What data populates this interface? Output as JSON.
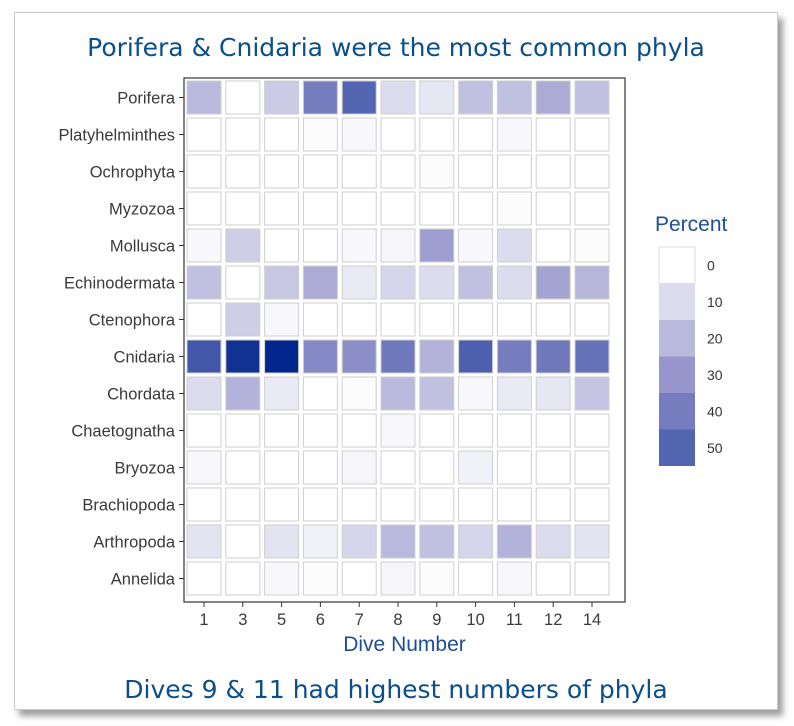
{
  "headline_top": "Porifera & Cnidaria were the most common phyla",
  "headline_bottom": "Dives 9 & 11 had highest numbers of phyla",
  "colors": {
    "headline": "#0b4f8a",
    "axis_title": "#1f4e96",
    "low": "#ffffff",
    "high": "#00258c",
    "cell_border": "#cfcfcf"
  },
  "chart_data": {
    "type": "heatmap",
    "title": "",
    "xlabel": "Dive Number",
    "ylabel": "",
    "x": [
      "1",
      "3",
      "5",
      "6",
      "7",
      "8",
      "9",
      "10",
      "11",
      "12",
      "14"
    ],
    "y": [
      "Porifera",
      "Platyhelminthes",
      "Ochrophyta",
      "Myzozoa",
      "Mollusca",
      "Echinodermata",
      "Ctenophora",
      "Cnidaria",
      "Chordata",
      "Chaetognatha",
      "Bryozoa",
      "Brachiopoda",
      "Arthropoda",
      "Annelida"
    ],
    "values": [
      [
        20,
        0,
        15,
        40,
        50,
        10,
        7,
        18,
        18,
        24,
        18
      ],
      [
        0,
        0,
        0,
        1,
        2,
        0,
        0,
        0,
        2,
        0,
        0
      ],
      [
        0,
        0,
        0,
        0,
        0,
        0,
        1,
        0,
        0,
        0,
        0
      ],
      [
        0,
        0,
        0,
        0,
        0,
        0,
        0,
        0,
        1,
        0,
        0
      ],
      [
        2,
        14,
        0,
        0,
        2,
        3,
        28,
        2,
        10,
        0,
        1
      ],
      [
        18,
        0,
        16,
        24,
        6,
        12,
        10,
        18,
        10,
        26,
        21
      ],
      [
        0,
        14,
        2,
        0,
        0,
        0,
        0,
        0,
        0,
        0,
        0
      ],
      [
        55,
        70,
        75,
        35,
        33,
        42,
        22,
        52,
        40,
        42,
        44
      ],
      [
        10,
        22,
        6,
        0,
        1,
        20,
        18,
        2,
        6,
        7,
        17
      ],
      [
        0,
        0,
        0,
        0,
        0,
        2,
        0,
        0,
        0,
        0,
        0
      ],
      [
        2,
        0,
        0,
        0,
        3,
        0,
        0,
        4,
        0,
        0,
        0
      ],
      [
        0,
        0,
        0,
        0,
        0,
        0,
        0,
        0,
        0,
        0,
        0
      ],
      [
        8,
        0,
        8,
        4,
        12,
        20,
        18,
        12,
        22,
        10,
        8
      ],
      [
        0,
        0,
        2,
        1,
        0,
        3,
        1,
        0,
        2,
        0,
        0
      ]
    ],
    "legend": {
      "title": "Percent",
      "ticks": [
        0,
        10,
        20,
        30,
        40,
        50
      ],
      "position": "right"
    }
  }
}
